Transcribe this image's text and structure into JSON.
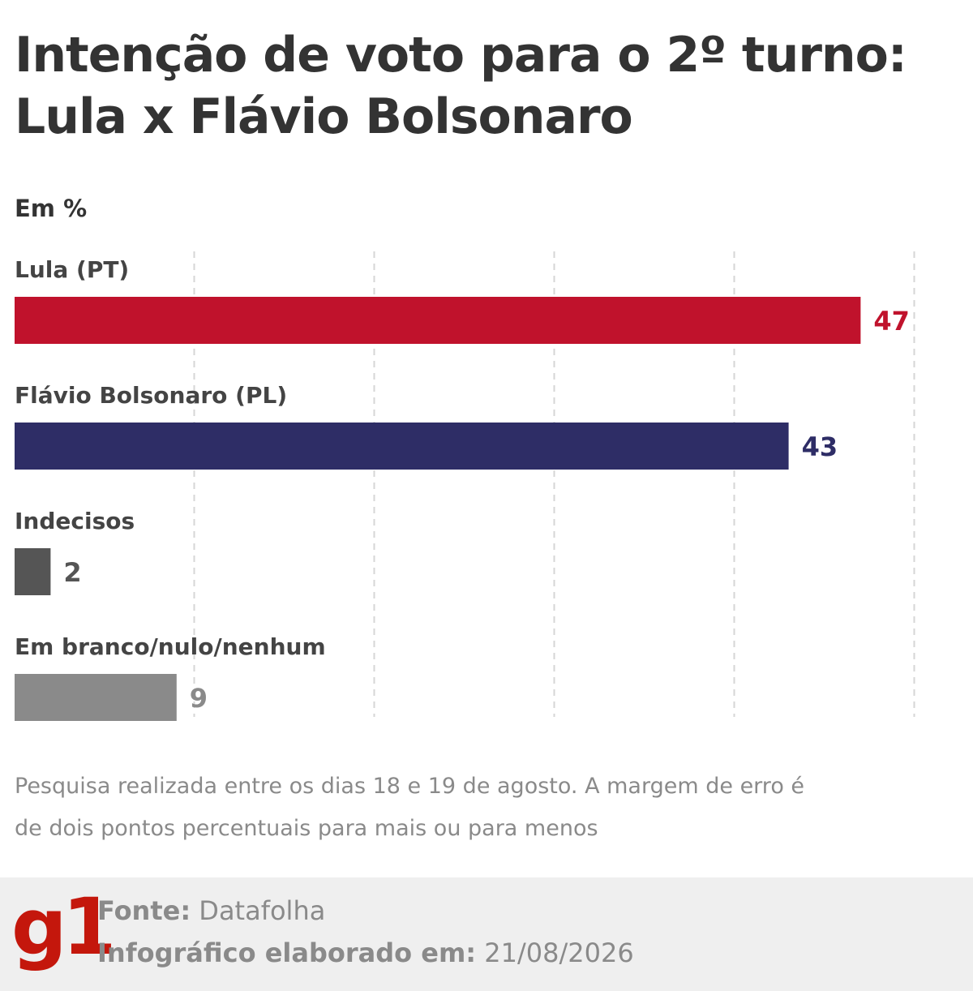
{
  "title": "Intenção de voto para o 2º turno: Lula x Flávio Bolsonaro",
  "unit": "Em %",
  "chart_data": {
    "type": "bar",
    "orientation": "horizontal",
    "categories": [
      "Lula (PT)",
      "Flávio Bolsonaro (PL)",
      "Indecisos",
      "Em branco/nulo/nenhum"
    ],
    "values": [
      47,
      43,
      2,
      9
    ],
    "colors": [
      "#c0122c",
      "#2e2d66",
      "#555555",
      "#8a8a8a"
    ],
    "xlim": [
      0,
      50
    ],
    "grid": true,
    "data_labels": true
  },
  "footnote": "Pesquisa realizada entre os dias 18 e 19 de agosto. A margem de erro é de dois pontos percentuais para mais ou para menos",
  "footer": {
    "logo": "g1",
    "logo_color": "#c4170c",
    "source_label": "Fonte:",
    "source_value": "Datafolha",
    "date_label": "Infográfico elaborado em:",
    "date_value": "21/08/2026"
  }
}
